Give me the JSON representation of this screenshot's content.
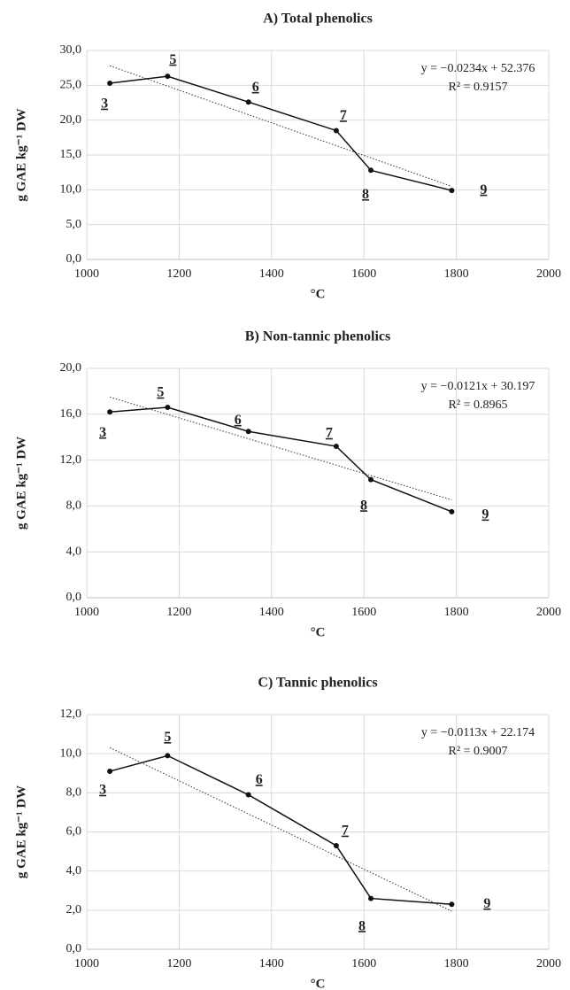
{
  "chart_data": [
    {
      "type": "line",
      "title": "A) Total phenolics",
      "xlabel": "°C",
      "ylabel": "g GAE kg⁻¹ DW",
      "x": [
        1050,
        1175,
        1350,
        1540,
        1615,
        1790
      ],
      "values": [
        25.3,
        26.3,
        22.6,
        18.5,
        12.8,
        9.9
      ],
      "point_labels": [
        "3",
        "5",
        "6",
        "7",
        "8",
        "9"
      ],
      "color": "#111111",
      "trend": {
        "slope": -0.0234,
        "intercept": 52.376,
        "label": "y = −0.0234x + 52.376",
        "r2_label": "R² = 0.9157"
      },
      "xlim": [
        1000,
        2000
      ],
      "xticks": [
        1000,
        1200,
        1400,
        1600,
        1800,
        2000
      ],
      "ylim": [
        0,
        30
      ],
      "yticks": [
        {
          "value": 0,
          "label": "0,0"
        },
        {
          "value": 5,
          "label": "5,0"
        },
        {
          "value": 10,
          "label": "10,0"
        },
        {
          "value": 15,
          "label": "15,0"
        },
        {
          "value": 20,
          "label": "20,0"
        },
        {
          "value": 25,
          "label": "25,0"
        },
        {
          "value": 30,
          "label": "30,0"
        }
      ],
      "grid": true
    },
    {
      "type": "line",
      "title": "B) Non-tannic phenolics",
      "xlabel": "°C",
      "ylabel": "g GAE kg⁻¹ DW",
      "x": [
        1050,
        1175,
        1350,
        1540,
        1615,
        1790
      ],
      "values": [
        16.2,
        16.6,
        14.5,
        13.2,
        10.3,
        7.5
      ],
      "point_labels": [
        "3",
        "5",
        "6",
        "7",
        "8",
        "9"
      ],
      "color": "#111111",
      "trend": {
        "slope": -0.0121,
        "intercept": 30.197,
        "label": "y = −0.0121x + 30.197",
        "r2_label": "R² = 0.8965"
      },
      "xlim": [
        1000,
        2000
      ],
      "xticks": [
        1000,
        1200,
        1400,
        1600,
        1800,
        2000
      ],
      "ylim": [
        0,
        20
      ],
      "yticks": [
        {
          "value": 0,
          "label": "0,0"
        },
        {
          "value": 4,
          "label": "4,0"
        },
        {
          "value": 8,
          "label": "8,0"
        },
        {
          "value": 12,
          "label": "12,0"
        },
        {
          "value": 16,
          "label": "16,0"
        },
        {
          "value": 20,
          "label": "20,0"
        }
      ],
      "grid": true
    },
    {
      "type": "line",
      "title": "C) Tannic phenolics",
      "xlabel": "°C",
      "ylabel": "g GAE kg⁻¹ DW",
      "x": [
        1050,
        1175,
        1350,
        1540,
        1615,
        1790
      ],
      "values": [
        9.1,
        9.9,
        7.9,
        5.3,
        2.6,
        2.3
      ],
      "point_labels": [
        "3",
        "5",
        "6",
        "7",
        "8",
        "9"
      ],
      "color": "#111111",
      "trend": {
        "slope": -0.0113,
        "intercept": 22.174,
        "label": "y = −0.0113x + 22.174",
        "r2_label": "R² = 0.9007"
      },
      "xlim": [
        1000,
        2000
      ],
      "xticks": [
        1000,
        1200,
        1400,
        1600,
        1800,
        2000
      ],
      "ylim": [
        0,
        12
      ],
      "yticks": [
        {
          "value": 0,
          "label": "0,0"
        },
        {
          "value": 2,
          "label": "2,0"
        },
        {
          "value": 4,
          "label": "4,0"
        },
        {
          "value": 6,
          "label": "6,0"
        },
        {
          "value": 8,
          "label": "8,0"
        },
        {
          "value": 10,
          "label": "10,0"
        },
        {
          "value": 12,
          "label": "12,0"
        }
      ],
      "grid": true
    }
  ]
}
